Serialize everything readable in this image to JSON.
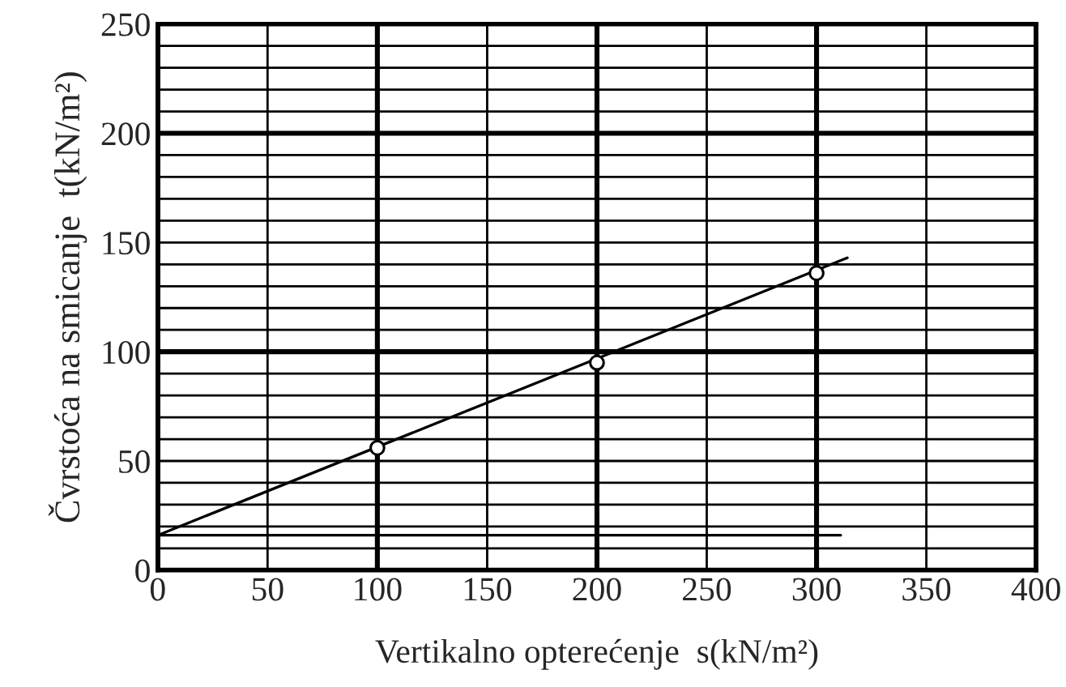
{
  "chart_data": {
    "type": "scatter",
    "xlabel": "Vertikalno opterećenje  s(kN/m²)",
    "ylabel": "Čvrstoća na smicanje  t(kN/m²)",
    "xlim": [
      0,
      400
    ],
    "ylim": [
      0,
      250
    ],
    "xticks": [
      0,
      50,
      100,
      150,
      200,
      250,
      300,
      350,
      400
    ],
    "yticks": [
      0,
      {
        "value": 10,
        "label": null
      },
      {
        "value": 20,
        "label": null
      },
      {
        "value": 30,
        "label": null
      },
      {
        "value": 40,
        "label": null
      },
      50,
      {
        "value": 60,
        "label": null
      },
      {
        "value": 70,
        "label": null
      },
      {
        "value": 80,
        "label": null
      },
      {
        "value": 90,
        "label": null
      },
      100,
      {
        "value": 110,
        "label": null
      },
      {
        "value": 120,
        "label": null
      },
      {
        "value": 130,
        "label": null
      },
      {
        "value": 140,
        "label": null
      },
      150,
      {
        "value": 160,
        "label": null
      },
      {
        "value": 170,
        "label": null
      },
      {
        "value": 180,
        "label": null
      },
      {
        "value": 190,
        "label": null
      },
      200,
      {
        "value": 210,
        "label": null
      },
      {
        "value": 220,
        "label": null
      },
      {
        "value": 230,
        "label": null
      },
      {
        "value": 240,
        "label": null
      },
      250
    ],
    "grid": true,
    "series": [
      {
        "type": "line",
        "color": "#000000",
        "x": [
          0,
          314
        ],
        "values": [
          16,
          143
        ]
      },
      {
        "type": "line",
        "color": "#000000",
        "x": [
          0,
          311
        ],
        "values": [
          16,
          16
        ]
      },
      {
        "color": "#000000",
        "marker": "circle",
        "x": [
          100,
          200,
          300
        ],
        "values": [
          56,
          95,
          136
        ]
      }
    ]
  }
}
